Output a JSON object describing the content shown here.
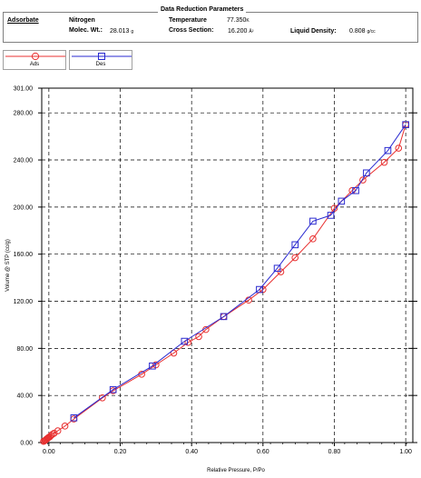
{
  "parameters": {
    "title": "Data Reduction Parameters",
    "adsorbate_label": "Adsorbate",
    "adsorbate_name": "Nitrogen",
    "molec_wt_label": "Molec. Wt.:",
    "molec_wt_value": "28.013",
    "molec_wt_unit": "g",
    "temperature_label": "Temperature",
    "temperature_value": "77.350",
    "temperature_unit": "K",
    "cross_section_label": "Cross Section:",
    "cross_section_value": "16.200",
    "cross_section_unit": "Å²",
    "liquid_density_label": "Liquid Density:",
    "liquid_density_value": "0.808",
    "liquid_density_unit": "g/cc"
  },
  "colors": {
    "adsorption": "#e83030",
    "desorption": "#2a2ad0",
    "grid": "#000000"
  },
  "chart_data": {
    "type": "line",
    "xlabel": "Relative Pressure, P/Po",
    "ylabel": "Volume @ STP (cc/g)",
    "xlim": [
      -0.02,
      1.02
    ],
    "ylim": [
      0,
      301
    ],
    "x_ticks": [
      "0.00",
      "0.20",
      "0.40",
      "0.60",
      "0.80",
      "1.00"
    ],
    "x_tick_values": [
      0,
      0.2,
      0.4,
      0.6,
      0.8,
      1.0
    ],
    "y_ticks": [
      "0.00",
      "40.00",
      "80.00",
      "120.00",
      "160.00",
      "200.00",
      "240.00",
      "280.00",
      "301.00"
    ],
    "y_tick_values": [
      0,
      40,
      80,
      120,
      160,
      200,
      240,
      280,
      301
    ],
    "grid": true,
    "legend_position": "top-left",
    "series": [
      {
        "name": "Ads",
        "marker": "circle",
        "x": [
          -0.015,
          -0.012,
          -0.01,
          -0.008,
          -0.006,
          -0.004,
          -0.002,
          0.0,
          0.003,
          0.006,
          0.01,
          0.015,
          0.025,
          0.045,
          0.07,
          0.15,
          0.18,
          0.26,
          0.3,
          0.35,
          0.39,
          0.42,
          0.44,
          0.49,
          0.56,
          0.6,
          0.65,
          0.69,
          0.74,
          0.8,
          0.85,
          0.88,
          0.94,
          0.98,
          1.0
        ],
        "y": [
          1,
          1.5,
          2,
          2.5,
          3,
          3.5,
          4,
          4.5,
          5,
          6,
          7,
          8,
          10,
          14,
          20,
          38,
          44,
          58,
          66,
          76,
          85,
          90,
          96,
          107,
          121,
          130,
          145,
          157,
          173,
          199,
          214,
          223,
          238,
          250,
          270
        ]
      },
      {
        "name": "Des",
        "marker": "square",
        "x": [
          1.0,
          0.95,
          0.89,
          0.86,
          0.82,
          0.79,
          0.74,
          0.69,
          0.64,
          0.59,
          0.49,
          0.38,
          0.29,
          0.18,
          0.07
        ],
        "y": [
          270,
          248,
          229,
          214,
          205,
          193,
          188,
          168,
          148,
          130,
          107,
          86,
          65,
          45,
          21
        ]
      }
    ]
  }
}
